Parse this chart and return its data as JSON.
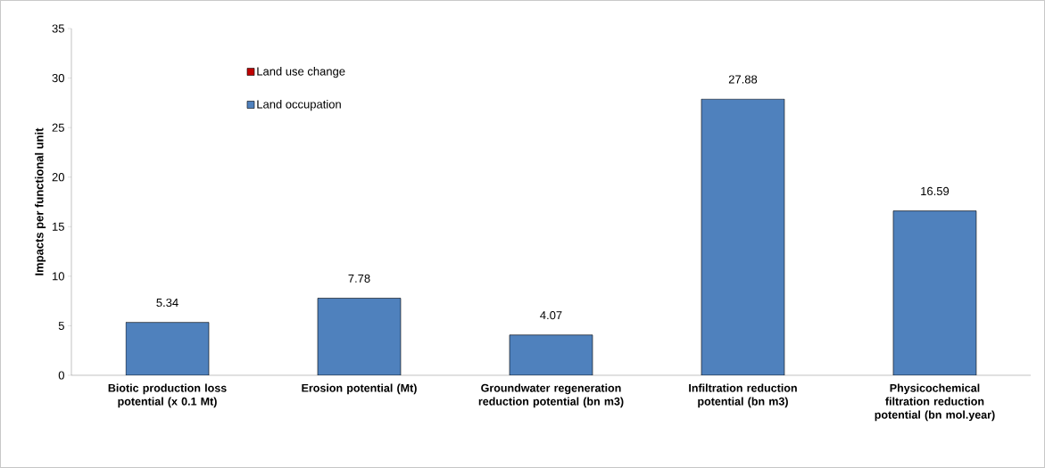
{
  "chart_data": {
    "type": "bar",
    "ylabel": "Impacts per functional unit",
    "categories": [
      "Biotic production loss potential (x 0.1 Mt)",
      "Erosion potential (Mt)",
      "Groundwater regeneration reduction potential (bn m3)",
      "Infiltration reduction potential (bn m3)",
      "Physicochemical filtration reduction potential (bn mol.year)"
    ],
    "stacked": true,
    "series": [
      {
        "name": "Land occupation",
        "color": "#4f81bd",
        "values": [
          5.34,
          7.78,
          4.07,
          27.88,
          16.59
        ]
      },
      {
        "name": "Land use change",
        "color": "#c00000",
        "values": [
          0,
          0,
          0,
          0,
          0
        ]
      }
    ],
    "totals": [
      "5.34",
      "7.78",
      "4.07",
      "27.88",
      "16.59"
    ],
    "ylim": [
      0,
      35
    ],
    "yticks": [
      0,
      5,
      10,
      15,
      20,
      25,
      30,
      35
    ],
    "grid": false,
    "legend": "top left"
  }
}
